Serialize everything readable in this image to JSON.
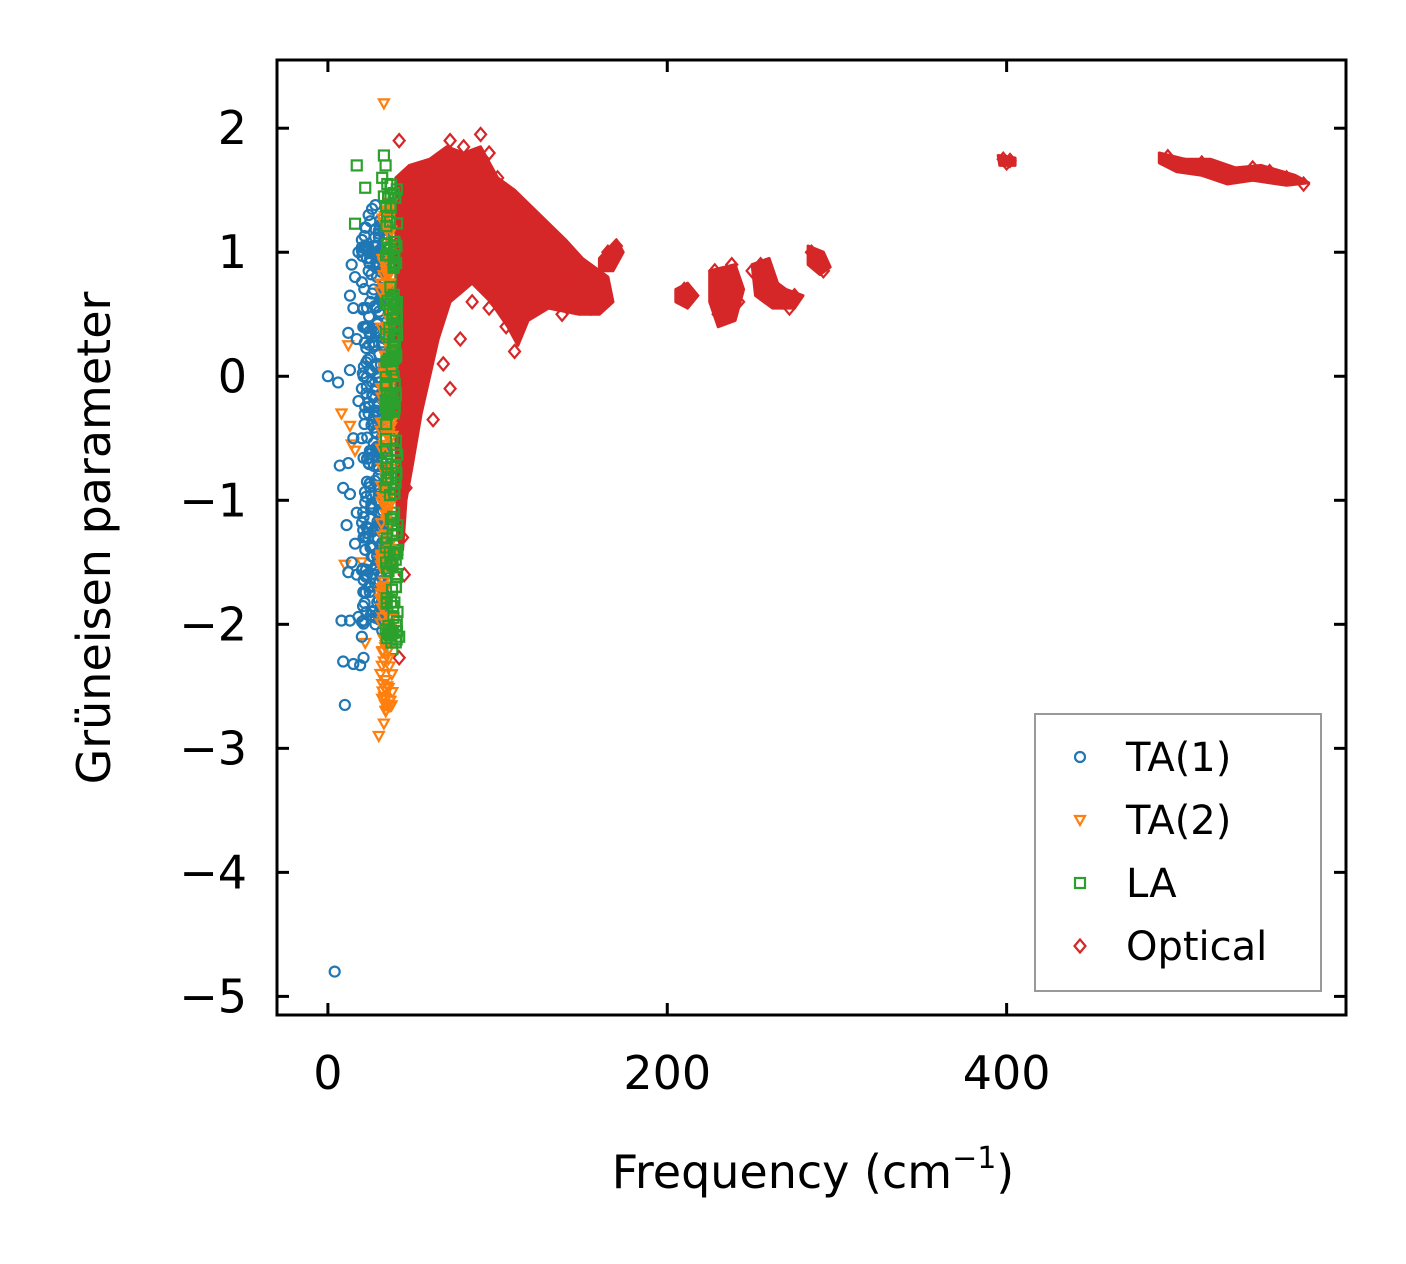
{
  "chart_data": {
    "type": "scatter",
    "title": "",
    "xlabel_base": "Frequency (cm",
    "xlabel_sup": "−1",
    "xlabel_close": ")",
    "ylabel": "Grüneisen parameter",
    "xlim": [
      -30,
      600
    ],
    "ylim": [
      -5.15,
      2.55
    ],
    "x_ticks": [
      0,
      200,
      400
    ],
    "x_tick_labels": [
      "0",
      "200",
      "400"
    ],
    "y_ticks": [
      2,
      1,
      0,
      -1,
      -2,
      -3,
      -4,
      -5
    ],
    "y_tick_labels": [
      "2",
      "1",
      "0",
      "−1",
      "−2",
      "−3",
      "−4",
      "−5"
    ],
    "legend_position": "lower-right",
    "series": [
      {
        "name": "TA(1)",
        "label": "TA(1)",
        "marker": "circle",
        "color": "#1f77b4",
        "points": [
          [
            4,
            -4.8
          ],
          [
            10,
            -2.65
          ],
          [
            9,
            -2.3
          ],
          [
            15,
            -2.32
          ],
          [
            19,
            -2.33
          ],
          [
            21,
            -2.27
          ],
          [
            8,
            -1.97
          ],
          [
            13,
            -1.97
          ],
          [
            18,
            -1.94
          ],
          [
            20,
            -2.1
          ],
          [
            17,
            -1.6
          ],
          [
            12,
            -1.58
          ],
          [
            14,
            -1.5
          ],
          [
            16,
            -1.35
          ],
          [
            11,
            -1.2
          ],
          [
            9,
            -0.9
          ],
          [
            13,
            -0.95
          ],
          [
            17,
            -1.1
          ],
          [
            7,
            -0.72
          ],
          [
            12,
            -0.7
          ],
          [
            15,
            -0.5
          ],
          [
            18,
            -0.2
          ],
          [
            20,
            -0.1
          ],
          [
            6,
            -0.05
          ],
          [
            0,
            0.0
          ],
          [
            13,
            0.05
          ],
          [
            17,
            0.3
          ],
          [
            12,
            0.35
          ],
          [
            15,
            0.55
          ],
          [
            13,
            0.65
          ],
          [
            16,
            0.8
          ],
          [
            14,
            0.9
          ],
          [
            18,
            1.0
          ],
          [
            20,
            1.1
          ],
          [
            22,
            1.2
          ],
          [
            24,
            1.3
          ],
          [
            26,
            1.35
          ],
          [
            28,
            1.38
          ],
          [
            25,
            1.25
          ],
          [
            30,
            1.15
          ],
          [
            27,
            1.05
          ],
          [
            23,
            0.95
          ],
          [
            29,
            0.8
          ],
          [
            25,
            0.6
          ],
          [
            31,
            0.5
          ],
          [
            22,
            0.4
          ],
          [
            27,
            0.25
          ],
          [
            33,
            0.1
          ],
          [
            21,
            0.0
          ],
          [
            28,
            -0.1
          ],
          [
            24,
            -0.3
          ],
          [
            32,
            -0.4
          ],
          [
            20,
            -0.5
          ],
          [
            26,
            -0.6
          ],
          [
            30,
            -0.75
          ],
          [
            23,
            -0.85
          ],
          [
            29,
            -1.0
          ],
          [
            25,
            -1.15
          ],
          [
            31,
            -1.25
          ],
          [
            22,
            -1.4
          ],
          [
            27,
            -1.55
          ],
          [
            24,
            -1.7
          ],
          [
            30,
            -1.8
          ],
          [
            26,
            -1.9
          ],
          [
            28,
            -2.0
          ],
          [
            32,
            -2.05
          ],
          [
            23,
            -1.6
          ],
          [
            29,
            -1.45
          ],
          [
            21,
            -1.3
          ],
          [
            26,
            -1.05
          ],
          [
            33,
            -0.9
          ],
          [
            24,
            -0.7
          ],
          [
            28,
            -0.45
          ],
          [
            22,
            -0.25
          ],
          [
            30,
            -0.05
          ],
          [
            25,
            0.15
          ],
          [
            31,
            0.35
          ],
          [
            23,
            0.55
          ],
          [
            27,
            0.7
          ],
          [
            29,
            0.9
          ],
          [
            26,
            1.0
          ],
          [
            24,
            0.85
          ],
          [
            32,
            0.65
          ]
        ]
      },
      {
        "name": "TA(2)",
        "label": "TA(2)",
        "marker": "triangle-down",
        "color": "#ff7f0e",
        "points": [
          [
            33,
            2.2
          ],
          [
            13,
            -0.4
          ],
          [
            8,
            -0.3
          ],
          [
            10,
            -1.52
          ],
          [
            14,
            -0.55
          ],
          [
            12,
            0.25
          ],
          [
            16,
            -0.6
          ],
          [
            22,
            -2.15
          ],
          [
            20,
            -1.5
          ],
          [
            30,
            -2.9
          ],
          [
            33,
            -2.8
          ],
          [
            34,
            -2.7
          ],
          [
            32,
            -2.6
          ],
          [
            35,
            -2.5
          ],
          [
            31,
            -2.4
          ],
          [
            33,
            -2.3
          ],
          [
            36,
            -2.2
          ],
          [
            32,
            -2.0
          ],
          [
            34,
            -1.8
          ],
          [
            35,
            -1.6
          ],
          [
            33,
            -1.4
          ],
          [
            36,
            -1.2
          ],
          [
            34,
            -1.0
          ],
          [
            35,
            -0.8
          ],
          [
            33,
            -0.6
          ],
          [
            36,
            -0.4
          ],
          [
            34,
            -0.2
          ],
          [
            35,
            0.0
          ],
          [
            33,
            0.2
          ],
          [
            36,
            0.4
          ],
          [
            34,
            0.6
          ],
          [
            35,
            0.8
          ],
          [
            37,
            1.0
          ],
          [
            34,
            1.2
          ],
          [
            36,
            1.4
          ],
          [
            33,
            0.9
          ],
          [
            35,
            -1.1
          ],
          [
            32,
            -1.9
          ],
          [
            36,
            -2.1
          ],
          [
            34,
            -2.45
          ],
          [
            35,
            -2.65
          ]
        ]
      },
      {
        "name": "LA",
        "label": "LA",
        "marker": "square",
        "color": "#2ca02c",
        "points": [
          [
            17,
            1.7
          ],
          [
            22,
            1.52
          ],
          [
            16,
            1.23
          ],
          [
            33,
            1.78
          ],
          [
            34,
            1.7
          ],
          [
            32,
            1.6
          ],
          [
            33,
            1.45
          ],
          [
            35,
            1.3
          ],
          [
            34,
            1.1
          ],
          [
            36,
            0.9
          ],
          [
            35,
            0.7
          ],
          [
            37,
            0.5
          ],
          [
            36,
            0.3
          ],
          [
            38,
            0.1
          ],
          [
            37,
            -0.1
          ],
          [
            39,
            -0.3
          ],
          [
            38,
            -0.5
          ],
          [
            40,
            -0.8
          ],
          [
            39,
            -1.1
          ],
          [
            41,
            -1.4
          ],
          [
            40,
            -1.7
          ],
          [
            41,
            -1.9
          ],
          [
            42,
            -2.1
          ],
          [
            38,
            -2.2
          ],
          [
            35,
            1.55
          ],
          [
            36,
            1.2
          ],
          [
            37,
            0.8
          ],
          [
            39,
            0.2
          ],
          [
            40,
            -0.6
          ],
          [
            41,
            -1.2
          ]
        ]
      },
      {
        "name": "Optical",
        "label": "Optical",
        "marker": "diamond",
        "color": "#d62728",
        "points": [
          [
            42,
            1.9
          ],
          [
            45,
            -1.6
          ],
          [
            42,
            -2.27
          ],
          [
            44,
            -1.3
          ],
          [
            46,
            -0.9
          ],
          [
            48,
            -0.6
          ],
          [
            50,
            -0.3
          ],
          [
            52,
            0.0
          ],
          [
            55,
            0.2
          ],
          [
            58,
            0.4
          ],
          [
            62,
            -0.35
          ],
          [
            65,
            1.5
          ],
          [
            70,
            1.7
          ],
          [
            72,
            1.9
          ],
          [
            80,
            1.85
          ],
          [
            90,
            1.95
          ],
          [
            95,
            1.8
          ],
          [
            100,
            1.6
          ],
          [
            105,
            1.5
          ],
          [
            110,
            1.4
          ],
          [
            115,
            1.3
          ],
          [
            120,
            1.2
          ],
          [
            125,
            1.1
          ],
          [
            130,
            1.0
          ],
          [
            135,
            0.9
          ],
          [
            140,
            0.8
          ],
          [
            145,
            0.7
          ],
          [
            150,
            0.6
          ],
          [
            155,
            0.55
          ],
          [
            160,
            0.6
          ],
          [
            165,
            1.0
          ],
          [
            170,
            1.05
          ],
          [
            110,
            0.2
          ],
          [
            105,
            0.4
          ],
          [
            95,
            0.55
          ],
          [
            85,
            0.6
          ],
          [
            75,
            0.7
          ],
          [
            60,
            0.9
          ],
          [
            55,
            1.0
          ],
          [
            50,
            1.2
          ],
          [
            47,
            1.4
          ],
          [
            68,
            0.1
          ],
          [
            72,
            -0.1
          ],
          [
            78,
            0.3
          ],
          [
            88,
            0.8
          ],
          [
            98,
            1.0
          ],
          [
            118,
            0.9
          ],
          [
            128,
            0.7
          ],
          [
            138,
            0.5
          ],
          [
            148,
            0.8
          ],
          [
            210,
            0.7
          ],
          [
            212,
            0.6
          ],
          [
            215,
            0.65
          ],
          [
            228,
            0.85
          ],
          [
            230,
            0.5
          ],
          [
            235,
            0.7
          ],
          [
            238,
            0.9
          ],
          [
            242,
            0.6
          ],
          [
            250,
            0.85
          ],
          [
            255,
            0.9
          ],
          [
            258,
            0.7
          ],
          [
            262,
            0.65
          ],
          [
            268,
            0.6
          ],
          [
            272,
            0.55
          ],
          [
            275,
            0.65
          ],
          [
            285,
            1.0
          ],
          [
            288,
            0.95
          ],
          [
            292,
            0.85
          ],
          [
            398,
            1.75
          ],
          [
            400,
            1.72
          ],
          [
            402,
            1.74
          ],
          [
            495,
            1.77
          ],
          [
            505,
            1.7
          ],
          [
            515,
            1.72
          ],
          [
            525,
            1.65
          ],
          [
            535,
            1.62
          ],
          [
            545,
            1.68
          ],
          [
            555,
            1.65
          ],
          [
            565,
            1.6
          ],
          [
            575,
            1.55
          ]
        ]
      }
    ]
  }
}
